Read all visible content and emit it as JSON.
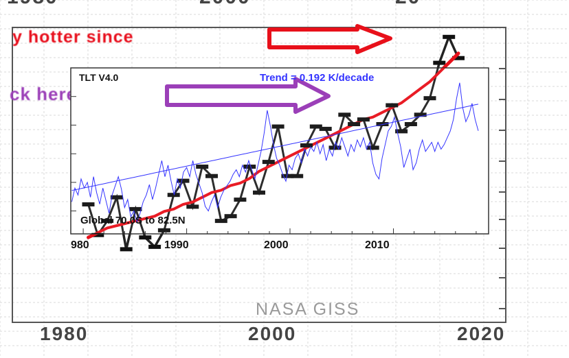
{
  "background": {
    "top_tick_labels": [
      "1980",
      "2000",
      "20"
    ],
    "bottom_tick_labels": [
      "1980",
      "2000",
      "2020"
    ],
    "banner_text": "y hotter since",
    "arrow_text": "ck here",
    "source_label": "NASA GISS",
    "colors": {
      "series": "#111111",
      "trend": "#e8101a",
      "banner": "#e8101a",
      "arrow": "#9b3fb8"
    }
  },
  "inset": {
    "dataset_label": "TLT V4.0",
    "trend_label": "Trend =  0.192 K/decade",
    "region_label": "Global  70.0S to  82.5N",
    "colors": {
      "series": "#3333ff",
      "trend_line": "#3333ff"
    }
  },
  "chart_data": [
    {
      "type": "line",
      "x": [
        1978,
        1979,
        1980,
        1981,
        1982,
        1983,
        1984,
        1985,
        1986,
        1987,
        1988,
        1989,
        1990,
        1991,
        1992,
        1993,
        1994,
        1995,
        1996,
        1997,
        1998,
        1999,
        2000,
        2001,
        2002,
        2003,
        2004,
        2005,
        2006,
        2007,
        2008,
        2009,
        2010,
        2011,
        2012,
        2013,
        2014,
        2015,
        2016,
        2017
      ],
      "series": [
        {
          "values": [
            0.3,
            0.17,
            0.23,
            0.33,
            0.11,
            0.28,
            0.16,
            0.12,
            0.19,
            0.34,
            0.4,
            0.29,
            0.46,
            0.42,
            0.23,
            0.25,
            0.32,
            0.46,
            0.35,
            0.48,
            0.63,
            0.42,
            0.42,
            0.55,
            0.63,
            0.62,
            0.54,
            0.68,
            0.64,
            0.66,
            0.54,
            0.64,
            0.72,
            0.61,
            0.64,
            0.68,
            0.75,
            0.9,
            1.01,
            0.92
          ]
        },
        {
          "values": [
            0.16,
            0.18,
            0.2,
            0.21,
            0.22,
            0.23,
            0.24,
            0.25,
            0.27,
            0.28,
            0.3,
            0.31,
            0.33,
            0.35,
            0.36,
            0.38,
            0.39,
            0.41,
            0.44,
            0.46,
            0.48,
            0.5,
            0.52,
            0.54,
            0.56,
            0.58,
            0.6,
            0.62,
            0.64,
            0.66,
            0.67,
            0.69,
            0.71,
            0.73,
            0.76,
            0.79,
            0.82,
            0.86,
            0.9,
            0.94
          ]
        }
      ],
      "xlim": [
        1970,
        2022
      ],
      "ylim": [
        -0.2,
        1.05
      ]
    },
    {
      "type": "line",
      "x_ticks": [
        "980",
        "1990",
        "2000",
        "2010"
      ],
      "x": [
        1978.9,
        1979.2,
        1979.5,
        1979.8,
        1980.1,
        1980.4,
        1980.7,
        1981.0,
        1981.3,
        1981.6,
        1981.9,
        1982.2,
        1982.5,
        1982.8,
        1983.1,
        1983.4,
        1983.7,
        1984.0,
        1984.3,
        1984.6,
        1984.9,
        1985.2,
        1985.5,
        1985.8,
        1986.1,
        1986.4,
        1986.7,
        1987.0,
        1987.3,
        1987.6,
        1987.9,
        1988.2,
        1988.5,
        1988.8,
        1989.1,
        1989.4,
        1989.7,
        1990.0,
        1990.3,
        1990.6,
        1990.9,
        1991.2,
        1991.5,
        1991.8,
        1992.1,
        1992.4,
        1992.7,
        1993.0,
        1993.3,
        1993.6,
        1993.9,
        1994.2,
        1994.5,
        1994.8,
        1995.1,
        1995.4,
        1995.7,
        1996.0,
        1996.3,
        1996.6,
        1996.9,
        1997.2,
        1997.5,
        1997.8,
        1998.1,
        1998.4,
        1998.7,
        1999.0,
        1999.3,
        1999.6,
        1999.9,
        2000.2,
        2000.5,
        2000.8,
        2001.1,
        2001.4,
        2001.7,
        2002.0,
        2002.3,
        2002.6,
        2002.9,
        2003.2,
        2003.5,
        2003.8,
        2004.1,
        2004.4,
        2004.7,
        2005.0,
        2005.3,
        2005.6,
        2005.9,
        2006.2,
        2006.5,
        2006.8,
        2007.1,
        2007.4,
        2007.7,
        2008.0,
        2008.3,
        2008.6,
        2008.9,
        2009.2,
        2009.5,
        2009.8,
        2010.1,
        2010.4,
        2010.7,
        2011.0,
        2011.3,
        2011.6,
        2011.9,
        2012.2,
        2012.5,
        2012.8,
        2013.1,
        2013.4,
        2013.7,
        2014.0,
        2014.3,
        2014.6,
        2014.9,
        2015.2,
        2015.5,
        2015.8,
        2016.1,
        2016.4,
        2016.7,
        2017.0,
        2017.3,
        2017.6,
        2017.9,
        2018.2
      ],
      "series": [
        {
          "values": [
            -0.42,
            -0.3,
            -0.36,
            -0.22,
            -0.3,
            -0.25,
            -0.38,
            -0.2,
            -0.34,
            -0.44,
            -0.3,
            -0.41,
            -0.52,
            -0.36,
            -0.28,
            -0.2,
            -0.31,
            -0.47,
            -0.4,
            -0.55,
            -0.5,
            -0.6,
            -0.52,
            -0.42,
            -0.36,
            -0.27,
            -0.4,
            -0.3,
            -0.18,
            -0.06,
            -0.2,
            -0.1,
            -0.24,
            -0.36,
            -0.22,
            -0.3,
            -0.16,
            -0.12,
            -0.2,
            -0.06,
            -0.18,
            -0.26,
            -0.34,
            -0.46,
            -0.5,
            -0.42,
            -0.36,
            -0.47,
            -0.38,
            -0.32,
            -0.28,
            -0.24,
            -0.18,
            -0.14,
            -0.2,
            -0.1,
            -0.16,
            -0.06,
            -0.14,
            -0.22,
            -0.1,
            0.02,
            0.18,
            0.38,
            0.24,
            0.08,
            -0.04,
            -0.1,
            -0.18,
            -0.24,
            -0.1,
            -0.14,
            -0.04,
            0.0,
            -0.08,
            0.04,
            -0.02,
            0.06,
            0.02,
            0.1,
            0.0,
            0.08,
            -0.06,
            0.04,
            -0.02,
            0.1,
            0.04,
            0.14,
            0.06,
            -0.02,
            0.08,
            0.02,
            0.12,
            0.06,
            0.14,
            0.04,
            0.1,
            -0.08,
            -0.18,
            -0.22,
            -0.04,
            0.08,
            0.2,
            0.24,
            0.32,
            0.18,
            0.06,
            -0.12,
            -0.04,
            0.04,
            -0.14,
            -0.08,
            0.04,
            0.12,
            0.02,
            0.06,
            0.1,
            0.02,
            0.1,
            0.04,
            0.08,
            0.14,
            0.2,
            0.3,
            0.48,
            0.62,
            0.4,
            0.28,
            0.34,
            0.44,
            0.3,
            0.2
          ]
        },
        {
          "values": [
            -0.32,
            -0.3155,
            -0.3097,
            -0.304,
            -0.2982,
            -0.2924,
            -0.2867,
            -0.2809,
            -0.2752,
            -0.2694,
            -0.2636,
            -0.2579,
            -0.2521,
            -0.2464,
            -0.2406,
            -0.2348,
            -0.2291,
            -0.2233,
            -0.2176,
            -0.2118,
            -0.206,
            -0.2003,
            -0.1945,
            -0.1888,
            -0.183,
            -0.1772,
            -0.1715,
            -0.1657,
            -0.16,
            -0.1542,
            -0.1484,
            -0.1427,
            -0.1369,
            -0.1312,
            -0.1254,
            -0.1196,
            -0.1139,
            -0.1081,
            -0.1024,
            -0.0966,
            -0.0908,
            -0.0851,
            -0.0793,
            -0.0736,
            -0.0678,
            -0.062,
            -0.0563,
            -0.0505,
            -0.0448,
            -0.039,
            -0.0332,
            -0.0275,
            -0.0217,
            -0.016,
            -0.0102,
            -0.0044,
            0.0013,
            0.0071,
            0.0128,
            0.0186,
            0.0244,
            0.0301,
            0.0359,
            0.0416,
            0.0474,
            0.0532,
            0.0589,
            0.0647,
            0.0704,
            0.0762,
            0.082,
            0.0877,
            0.0935,
            0.0992,
            0.105,
            0.1108,
            0.1165,
            0.1223,
            0.128,
            0.1338,
            0.1396,
            0.1453,
            0.1511,
            0.1568,
            0.1626,
            0.1684,
            0.1741,
            0.1799,
            0.1856,
            0.1914,
            0.1972,
            0.2029,
            0.2087,
            0.2144,
            0.2202,
            0.226,
            0.2317,
            0.2375,
            0.2432,
            0.249,
            0.2548,
            0.2605,
            0.2663,
            0.272,
            0.2778,
            0.2836,
            0.2893,
            0.2951,
            0.3008,
            0.3066,
            0.3124,
            0.3181,
            0.3239,
            0.3296,
            0.3354,
            0.3412,
            0.3469,
            0.3527,
            0.3584,
            0.3642,
            0.37,
            0.3757,
            0.3815,
            0.3872,
            0.393,
            0.3988,
            0.4045,
            0.4103,
            0.416,
            0.4218,
            0.4276,
            0.4333
          ]
        }
      ],
      "xlim": [
        1978.8,
        2019.2
      ],
      "ylim": [
        -0.7,
        0.75
      ]
    }
  ]
}
